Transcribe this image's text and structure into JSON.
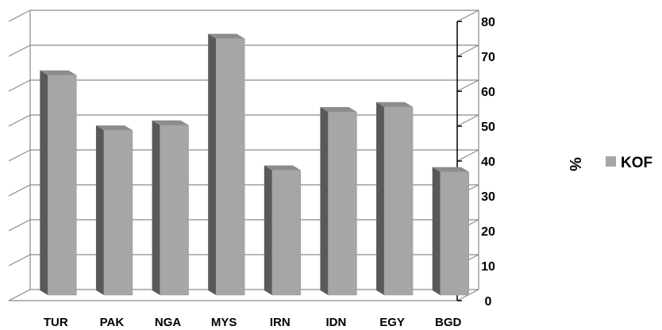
{
  "chart_data": {
    "type": "bar",
    "style": "3d-column",
    "categories": [
      "TUR",
      "PAK",
      "NGA",
      "MYS",
      "IRN",
      "IDN",
      "EGY",
      "BGD"
    ],
    "series": [
      {
        "name": "KOF",
        "values": [
          66,
          49.5,
          51,
          77,
          37.5,
          55,
          56.5,
          37
        ]
      }
    ],
    "ylabel": "%",
    "ylim": [
      0,
      80
    ],
    "yticks": [
      0,
      10,
      20,
      30,
      40,
      50,
      60,
      70,
      80
    ],
    "grid": true,
    "legend": "right",
    "colors": {
      "bar_front": "#a6a6a6",
      "bar_side": "#595959",
      "bar_top": "#8c8c8c",
      "grid": "#8a8a8a",
      "legend_swatch": "#a6a6a6"
    }
  }
}
